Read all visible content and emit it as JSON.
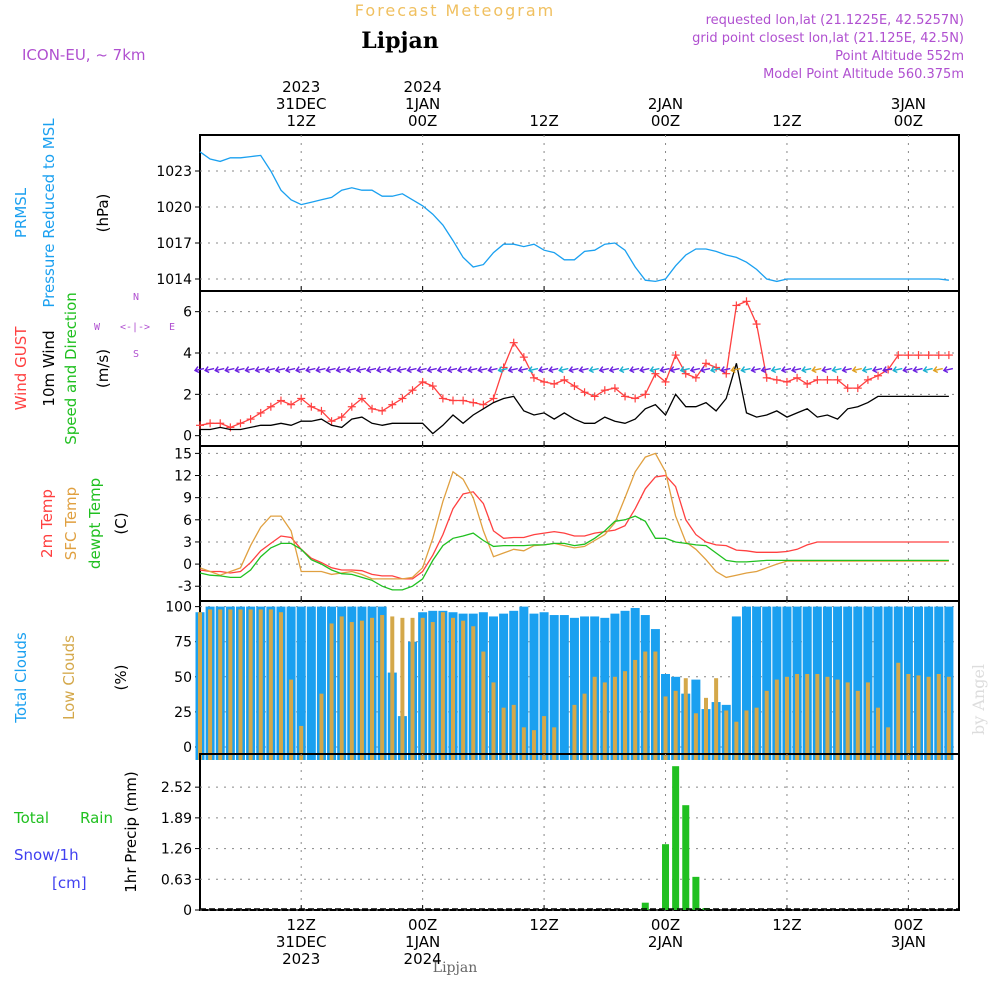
{
  "header": {
    "title": "Forecast Meteogram",
    "station": "Lipjan",
    "model": "ICON-EU, ~ 7km",
    "requested": "requested lon,lat (21.1225E, 42.5257N)",
    "closest": "grid point closest lon,lat (21.125E, 42.5N)",
    "point_altitude": "Point Altitude 552m",
    "model_altitude": "Model Point Altitude 560.375m",
    "footer_station": "Lipjan",
    "credit": "by Angel",
    "compass_n": "N",
    "compass_s": "S",
    "compass_w": "W",
    "compass_e": "E",
    "compass_glyph": "<-|->",
    "colors": {
      "title": "#f0c060",
      "station": "#000000",
      "meta": "#b050d0",
      "pressure": "#1aa0f0",
      "gust": "#ff4040",
      "wind": "#000000",
      "dir": "#20c020",
      "sfc": "#e0a040",
      "dew": "#20c020",
      "total_clouds": "#1aa0f0",
      "low_clouds": "#d4a84a",
      "rain": "#20c020",
      "snow": "#4040f0"
    }
  },
  "time_axis": {
    "top_labels": [
      [
        "2023",
        "31DEC",
        "12Z"
      ],
      [
        "2024",
        "1JAN",
        "00Z"
      ],
      [
        "",
        "",
        "12Z"
      ],
      [
        "",
        "2JAN",
        "00Z"
      ],
      [
        "",
        "",
        "12Z"
      ],
      [
        "",
        "3JAN",
        "00Z"
      ]
    ],
    "bottom_labels": [
      [
        "12Z",
        "31DEC",
        "2023"
      ],
      [
        "00Z",
        "1JAN",
        "2024"
      ],
      [
        "12Z",
        "",
        ""
      ],
      [
        "00Z",
        "2JAN",
        ""
      ],
      [
        "12Z",
        "",
        ""
      ],
      [
        "00Z",
        "3JAN",
        ""
      ]
    ],
    "tick_hours": [
      12,
      24,
      36,
      48,
      60,
      72
    ],
    "hour_range": [
      2,
      77
    ]
  },
  "chart_data": [
    {
      "type": "line",
      "panel": "pressure",
      "ylabels": [
        "PRMSL",
        "Pressure Reduced to MSL",
        "(hPa)"
      ],
      "ylim": [
        1013,
        1026
      ],
      "yticks": [
        1014,
        1017,
        1020,
        1023
      ],
      "grid": true,
      "x": [
        2,
        3,
        4,
        5,
        6,
        7,
        8,
        9,
        10,
        11,
        12,
        13,
        14,
        15,
        16,
        17,
        18,
        19,
        20,
        21,
        22,
        23,
        24,
        25,
        26,
        27,
        28,
        29,
        30,
        31,
        32,
        33,
        34,
        35,
        36,
        37,
        38,
        39,
        40,
        41,
        42,
        43,
        44,
        45,
        46,
        47,
        48,
        49,
        50,
        51,
        52,
        53,
        54,
        55,
        56,
        57,
        58,
        59,
        60,
        61,
        62,
        63,
        64,
        65,
        66,
        67,
        68,
        69,
        70,
        71,
        72,
        73,
        74,
        75,
        76
      ],
      "series": [
        {
          "name": "PRMSL",
          "values": [
            1024.6,
            1024.0,
            1023.8,
            1024.1,
            1024.1,
            1024.2,
            1024.3,
            1023.0,
            1021.4,
            1020.6,
            1020.2,
            1020.4,
            1020.6,
            1020.8,
            1021.4,
            1021.6,
            1021.4,
            1021.4,
            1020.9,
            1020.9,
            1021.1,
            1020.6,
            1020.1,
            1019.4,
            1018.5,
            1017.2,
            1015.8,
            1015.0,
            1015.2,
            1016.2,
            1016.9,
            1016.9,
            1016.7,
            1016.9,
            1016.4,
            1016.2,
            1015.6,
            1015.6,
            1016.3,
            1016.4,
            1016.9,
            1017.0,
            1016.4,
            1015.0,
            1013.9,
            1013.8,
            1014.0,
            1015.1,
            1016.0,
            1016.5,
            1016.5,
            1016.3,
            1016.0,
            1015.8,
            1015.4,
            1014.8,
            1014.0,
            1013.8,
            1014.0,
            1014.0,
            1014.0,
            1014.0,
            1014.0,
            1014.0,
            1014.0,
            1014.0,
            1014.0,
            1014.0,
            1014.0,
            1014.0,
            1014.0,
            1014.0,
            1014.0,
            1014.0,
            1013.9
          ]
        }
      ]
    },
    {
      "type": "line",
      "panel": "wind",
      "ylabels": [
        "Wind GUST",
        "10m Wind",
        "Speed and Direction",
        "(m/s)"
      ],
      "ylim": [
        -0.5,
        7
      ],
      "yticks": [
        0,
        2,
        4,
        6
      ],
      "grid": true,
      "x": [
        2,
        3,
        4,
        5,
        6,
        7,
        8,
        9,
        10,
        11,
        12,
        13,
        14,
        15,
        16,
        17,
        18,
        19,
        20,
        21,
        22,
        23,
        24,
        25,
        26,
        27,
        28,
        29,
        30,
        31,
        32,
        33,
        34,
        35,
        36,
        37,
        38,
        39,
        40,
        41,
        42,
        43,
        44,
        45,
        46,
        47,
        48,
        49,
        50,
        51,
        52,
        53,
        54,
        55,
        56,
        57,
        58,
        59,
        60,
        61,
        62,
        63,
        64,
        65,
        66,
        67,
        68,
        69,
        70,
        71,
        72,
        73,
        74,
        75,
        76
      ],
      "series": [
        {
          "name": "Wind GUST",
          "values": [
            0.5,
            0.6,
            0.6,
            0.4,
            0.6,
            0.8,
            1.1,
            1.4,
            1.7,
            1.5,
            1.8,
            1.4,
            1.2,
            0.7,
            0.9,
            1.4,
            1.8,
            1.3,
            1.2,
            1.5,
            1.8,
            2.2,
            2.6,
            2.4,
            1.8,
            1.7,
            1.7,
            1.6,
            1.5,
            1.8,
            3.3,
            4.5,
            3.8,
            2.8,
            2.6,
            2.5,
            2.7,
            2.4,
            2.1,
            1.9,
            2.2,
            2.3,
            1.9,
            1.8,
            2.0,
            3.0,
            2.6,
            3.9,
            3.0,
            2.8,
            3.5,
            3.3,
            3.0,
            6.3,
            6.5,
            5.4,
            2.8,
            2.7,
            2.6,
            2.8,
            2.5,
            2.7,
            2.7,
            2.7,
            2.3,
            2.3,
            2.7,
            2.9,
            3.2,
            3.9,
            3.9,
            3.9,
            3.9,
            3.9,
            3.9
          ]
        },
        {
          "name": "10m Wind",
          "values": [
            0.3,
            0.3,
            0.4,
            0.3,
            0.3,
            0.4,
            0.5,
            0.5,
            0.6,
            0.5,
            0.7,
            0.7,
            0.8,
            0.5,
            0.4,
            0.8,
            0.9,
            0.6,
            0.5,
            0.6,
            0.6,
            0.6,
            0.6,
            0.1,
            0.5,
            1.0,
            0.6,
            1.0,
            1.3,
            1.6,
            1.8,
            1.9,
            1.2,
            1.0,
            1.1,
            0.8,
            1.1,
            0.8,
            0.6,
            0.6,
            0.9,
            0.7,
            0.6,
            0.8,
            1.3,
            1.5,
            1.0,
            2.0,
            1.4,
            1.4,
            1.6,
            1.2,
            1.8,
            3.5,
            1.1,
            0.9,
            1.0,
            1.2,
            0.9,
            1.1,
            1.3,
            0.9,
            1.0,
            0.8,
            1.3,
            1.4,
            1.6,
            1.9,
            1.9,
            1.9,
            1.9,
            1.9,
            1.9,
            1.9,
            1.9
          ]
        }
      ]
    },
    {
      "type": "line",
      "panel": "temperature",
      "ylabels": [
        "2m Temp",
        "SFC Temp",
        "dewpt Temp",
        "(C)"
      ],
      "ylim": [
        -5,
        16
      ],
      "yticks": [
        -3,
        0,
        3,
        6,
        9,
        12,
        15
      ],
      "grid": true,
      "x": [
        2,
        3,
        4,
        5,
        6,
        7,
        8,
        9,
        10,
        11,
        12,
        13,
        14,
        15,
        16,
        17,
        18,
        19,
        20,
        21,
        22,
        23,
        24,
        25,
        26,
        27,
        28,
        29,
        30,
        31,
        32,
        33,
        34,
        35,
        36,
        37,
        38,
        39,
        40,
        41,
        42,
        43,
        44,
        45,
        46,
        47,
        48,
        49,
        50,
        51,
        52,
        53,
        54,
        55,
        56,
        57,
        58,
        59,
        60,
        61,
        62,
        63,
        64,
        65,
        66,
        67,
        68,
        69,
        70,
        71,
        72,
        73,
        74,
        75,
        76
      ],
      "series": [
        {
          "name": "2m Temp",
          "values": [
            -0.8,
            -1.0,
            -1.0,
            -1.2,
            -1.0,
            0.2,
            1.8,
            2.8,
            3.8,
            3.6,
            2.0,
            0.8,
            0.2,
            -0.5,
            -0.8,
            -0.8,
            -0.9,
            -1.4,
            -1.6,
            -1.6,
            -2.0,
            -2.0,
            -1.0,
            1.2,
            4.0,
            7.5,
            9.5,
            9.8,
            8.2,
            4.5,
            3.5,
            3.6,
            3.6,
            4.0,
            4.2,
            4.4,
            4.2,
            3.8,
            3.8,
            4.2,
            4.4,
            4.6,
            5.2,
            7.5,
            10.2,
            11.8,
            12.0,
            10.5,
            6.0,
            4.0,
            3.0,
            2.6,
            2.5,
            1.9,
            1.8,
            1.6,
            1.6,
            1.6,
            1.7,
            2.0,
            2.6,
            3.0,
            3.0,
            3.0,
            3.0,
            3.0,
            3.0,
            3.0,
            3.0,
            3.0,
            3.0,
            3.0,
            3.0,
            3.0,
            3.0
          ]
        },
        {
          "name": "SFC Temp",
          "values": [
            -0.5,
            -1.0,
            -1.5,
            -1.0,
            -0.5,
            2.5,
            5.0,
            6.5,
            6.5,
            4.5,
            -1.0,
            -1.0,
            -1.0,
            -1.4,
            -1.2,
            -1.0,
            -1.4,
            -2.0,
            -2.0,
            -2.0,
            -2.0,
            -1.8,
            -0.5,
            3.5,
            8.5,
            12.5,
            11.5,
            9.0,
            4.5,
            1.0,
            1.5,
            2.0,
            1.8,
            2.5,
            2.6,
            2.8,
            2.5,
            2.2,
            2.4,
            3.2,
            4.0,
            5.6,
            9.0,
            12.5,
            14.5,
            15.0,
            12.5,
            6.5,
            3.0,
            2.0,
            0.6,
            -1.0,
            -1.8,
            -1.5,
            -1.2,
            -1.0,
            -0.5,
            0.0,
            0.4,
            0.4,
            0.4,
            0.4,
            0.4,
            0.4,
            0.4,
            0.4,
            0.4,
            0.4,
            0.4,
            0.4,
            0.4,
            0.4,
            0.4,
            0.4,
            0.4
          ]
        },
        {
          "name": "dewpt Temp",
          "values": [
            -1.2,
            -1.5,
            -1.6,
            -1.8,
            -1.8,
            -0.8,
            1.0,
            2.2,
            2.8,
            2.8,
            2.0,
            0.6,
            0.0,
            -0.8,
            -1.3,
            -1.4,
            -1.8,
            -2.2,
            -3.0,
            -3.5,
            -3.5,
            -3.0,
            -2.0,
            0.5,
            2.5,
            3.5,
            3.8,
            4.2,
            3.2,
            2.4,
            2.5,
            2.5,
            2.5,
            2.6,
            2.6,
            2.8,
            2.8,
            2.5,
            2.7,
            3.5,
            4.5,
            5.8,
            6.0,
            6.5,
            5.8,
            3.5,
            3.5,
            3.0,
            2.8,
            2.6,
            2.5,
            1.5,
            0.5,
            0.3,
            0.3,
            0.4,
            0.5,
            0.5,
            0.5,
            0.5,
            0.5,
            0.5,
            0.5,
            0.5,
            0.5,
            0.5,
            0.5,
            0.5,
            0.5,
            0.5,
            0.5,
            0.5,
            0.5,
            0.5,
            0.5
          ]
        }
      ]
    },
    {
      "type": "bar",
      "panel": "clouds",
      "ylabels": [
        "Total Clouds",
        "Low Clouds",
        "(%)"
      ],
      "ylim": [
        -5,
        104
      ],
      "yticks": [
        0,
        25,
        50,
        75,
        100
      ],
      "grid": true,
      "x": [
        2,
        3,
        4,
        5,
        6,
        7,
        8,
        9,
        10,
        11,
        12,
        13,
        14,
        15,
        16,
        17,
        18,
        19,
        20,
        21,
        22,
        23,
        24,
        25,
        26,
        27,
        28,
        29,
        30,
        31,
        32,
        33,
        34,
        35,
        36,
        37,
        38,
        39,
        40,
        41,
        42,
        43,
        44,
        45,
        46,
        47,
        48,
        49,
        50,
        51,
        52,
        53,
        54,
        55,
        56,
        57,
        58,
        59,
        60,
        61,
        62,
        63,
        64,
        65,
        66,
        67,
        68,
        69,
        70,
        71,
        72,
        73,
        74,
        75,
        76
      ],
      "series": [
        {
          "name": "Total Clouds",
          "values": [
            96,
            100,
            100,
            100,
            100,
            100,
            100,
            100,
            100,
            100,
            100,
            100,
            100,
            100,
            100,
            100,
            100,
            100,
            100,
            53,
            22,
            75,
            96,
            97,
            97,
            96,
            95,
            95,
            96,
            93,
            95,
            97,
            100,
            95,
            96,
            94,
            94,
            92,
            93,
            93,
            92,
            95,
            97,
            99,
            94,
            84,
            52,
            50,
            38,
            48,
            27,
            32,
            30,
            93,
            100,
            100,
            100,
            100,
            100,
            100,
            100,
            100,
            100,
            100,
            100,
            100,
            100,
            100,
            100,
            100,
            100,
            100,
            100,
            100,
            100
          ]
        },
        {
          "name": "Low Clouds",
          "values": [
            96,
            98,
            98,
            98,
            98,
            98,
            98,
            98,
            96,
            48,
            15,
            0,
            38,
            88,
            93,
            89,
            90,
            92,
            94,
            93,
            92,
            92,
            92,
            89,
            96,
            92,
            90,
            86,
            68,
            46,
            28,
            30,
            14,
            12,
            22,
            14,
            0,
            30,
            38,
            50,
            46,
            50,
            54,
            62,
            68,
            68,
            36,
            40,
            49,
            24,
            35,
            49,
            26,
            18,
            26,
            28,
            40,
            48,
            50,
            52,
            52,
            52,
            50,
            48,
            46,
            40,
            46,
            28,
            14,
            60,
            52,
            51,
            50,
            52,
            50
          ]
        }
      ]
    },
    {
      "type": "bar",
      "panel": "precip",
      "ylabels": [
        "1hr Precip (mm)"
      ],
      "side_labels": [
        "Total",
        "Rain",
        "Snow/1h",
        "[cm]"
      ],
      "ylim": [
        0,
        3.2
      ],
      "yticks": [
        0,
        0.63,
        1.26,
        1.89,
        2.52
      ],
      "ytick_labels": [
        "0",
        "0.63",
        "1.26",
        "1.89",
        "2.52"
      ],
      "grid": true,
      "x": [
        46,
        48,
        49,
        50,
        51,
        52
      ],
      "series": [
        {
          "name": "Rain",
          "values": [
            0.15,
            1.35,
            2.95,
            2.15,
            0.68,
            0.04
          ]
        }
      ]
    }
  ]
}
